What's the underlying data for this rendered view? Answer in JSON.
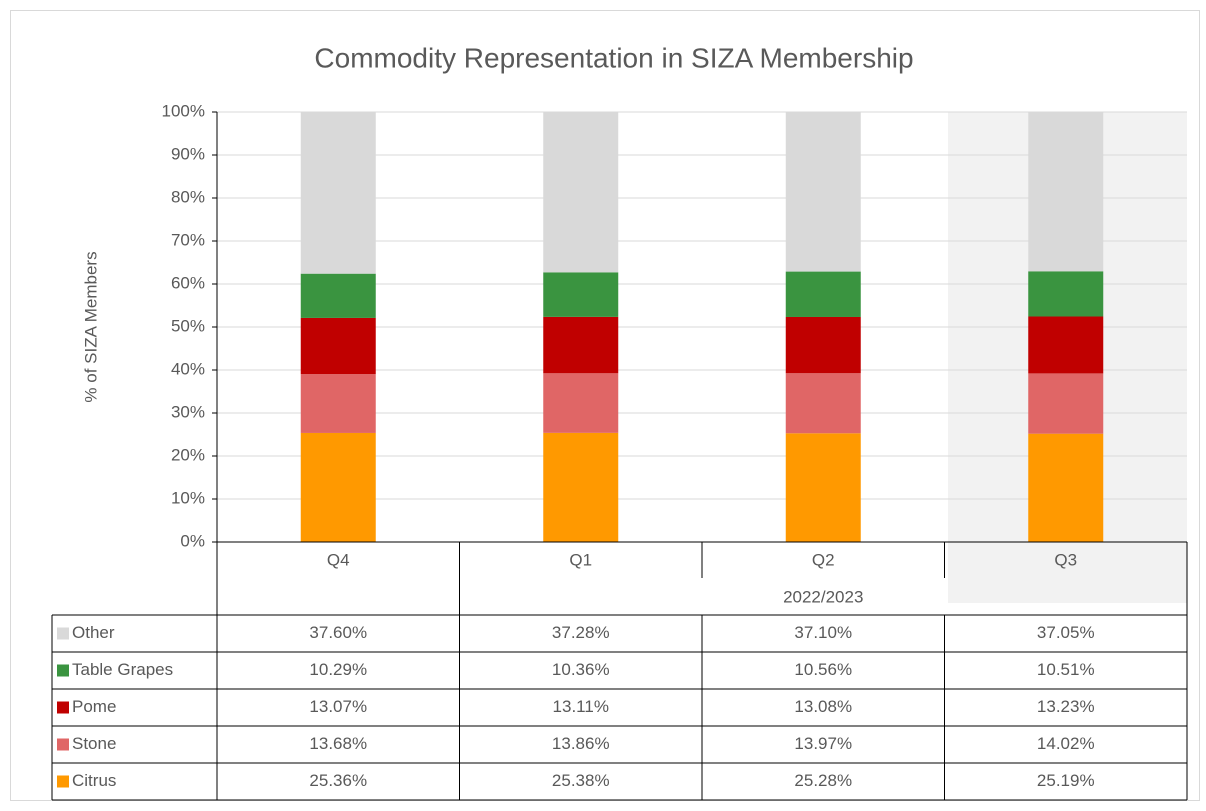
{
  "chart_data": {
    "type": "bar",
    "stacked": true,
    "title": "Commodity Representation in SIZA Membership",
    "y_label": "% of SIZA Members",
    "categories": [
      "Q4",
      "Q1",
      "Q2",
      "Q3"
    ],
    "x_group_label": "2022/2023",
    "ylim": [
      0,
      100
    ],
    "yticks": [
      {
        "value": 0,
        "label": "0%"
      },
      {
        "value": 10,
        "label": "10%"
      },
      {
        "value": 20,
        "label": "20%"
      },
      {
        "value": 30,
        "label": "30%"
      },
      {
        "value": 40,
        "label": "40%"
      },
      {
        "value": 50,
        "label": "50%"
      },
      {
        "value": 60,
        "label": "60%"
      },
      {
        "value": 70,
        "label": "70%"
      },
      {
        "value": 80,
        "label": "80%"
      },
      {
        "value": 90,
        "label": "90%"
      },
      {
        "value": 100,
        "label": "100%"
      }
    ],
    "grid": true,
    "series": [
      {
        "name": "Citrus",
        "color": "#ff9900",
        "values": [
          25.36,
          25.38,
          25.28,
          25.19
        ],
        "value_labels": [
          "25.36%",
          "25.38%",
          "25.28%",
          "25.19%"
        ]
      },
      {
        "name": "Stone",
        "color": "#e06666",
        "values": [
          13.68,
          13.86,
          13.97,
          14.02
        ],
        "value_labels": [
          "13.68%",
          "13.86%",
          "13.97%",
          "14.02%"
        ]
      },
      {
        "name": "Pome",
        "color": "#c00000",
        "values": [
          13.07,
          13.11,
          13.08,
          13.23
        ],
        "value_labels": [
          "13.07%",
          "13.11%",
          "13.08%",
          "13.23%"
        ]
      },
      {
        "name": "Table Grapes",
        "color": "#3a9440",
        "values": [
          10.29,
          10.36,
          10.56,
          10.51
        ],
        "value_labels": [
          "10.29%",
          "10.36%",
          "10.56%",
          "10.51%"
        ]
      },
      {
        "name": "Other",
        "color": "#d9d9d9",
        "values": [
          37.6,
          37.28,
          37.1,
          37.05
        ],
        "value_labels": [
          "37.60%",
          "37.28%",
          "37.10%",
          "37.05%"
        ]
      }
    ]
  }
}
